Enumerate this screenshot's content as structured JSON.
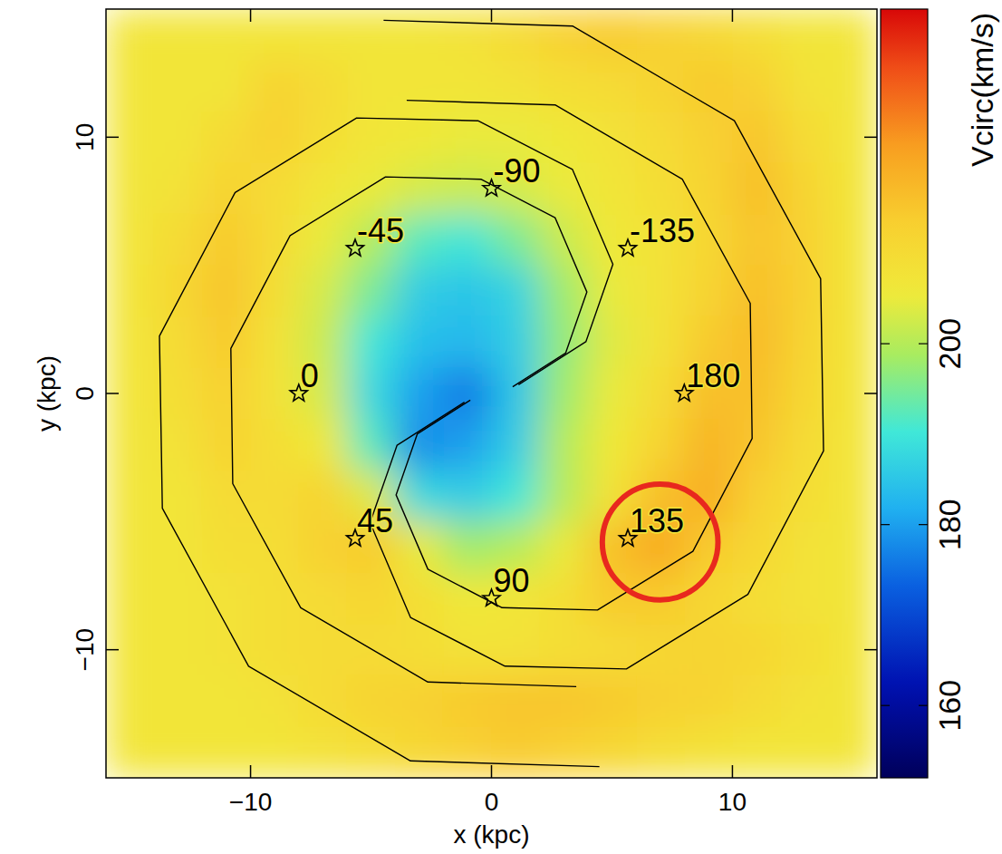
{
  "chart_data": {
    "type": "heatmap",
    "x_label": "x (kpc)",
    "y_label": "y (kpc)",
    "xlim": [
      -16,
      16
    ],
    "ylim": [
      -15,
      15
    ],
    "xticks": [
      {
        "value": -10,
        "label": "−10"
      },
      0,
      10
    ],
    "yticks": [
      {
        "value": -10,
        "label": "−10"
      },
      0,
      10
    ],
    "x": [
      -15,
      -13,
      -11,
      -9,
      -7,
      -5,
      -3,
      -1,
      1,
      3,
      5,
      7,
      9,
      11,
      13,
      15
    ],
    "y": [
      14,
      12,
      10,
      8,
      6,
      4,
      2,
      0,
      -2,
      -4,
      -6,
      -8,
      -10,
      -12,
      -14
    ],
    "cells": [
      [
        207,
        207,
        207,
        207,
        207,
        207,
        207,
        208,
        210,
        213,
        214,
        213,
        211,
        209,
        207,
        207
      ],
      [
        207,
        207,
        207,
        212,
        210,
        207,
        207,
        207,
        208,
        209,
        210,
        212,
        214,
        213,
        208,
        207
      ],
      [
        207,
        207,
        210,
        213,
        209,
        207,
        206,
        205,
        205,
        206,
        208,
        210,
        213,
        215,
        210,
        207
      ],
      [
        207,
        208,
        212,
        210,
        207,
        205,
        203,
        202,
        203,
        205,
        207,
        209,
        212,
        216,
        212,
        207
      ],
      [
        207,
        210,
        214,
        210,
        205,
        200,
        192,
        190,
        195,
        202,
        206,
        208,
        211,
        215,
        213,
        207
      ],
      [
        207,
        211,
        215,
        209,
        203,
        195,
        186,
        185,
        187,
        198,
        205,
        208,
        212,
        216,
        213,
        207
      ],
      [
        207,
        210,
        214,
        208,
        202,
        190,
        184,
        183,
        186,
        197,
        204,
        208,
        214,
        217,
        212,
        207
      ],
      [
        207,
        209,
        213,
        208,
        203,
        188,
        180,
        176,
        185,
        198,
        205,
        210,
        216,
        216,
        211,
        207
      ],
      [
        207,
        208,
        212,
        209,
        206,
        192,
        178,
        180,
        186,
        200,
        206,
        212,
        218,
        215,
        210,
        207
      ],
      [
        207,
        207,
        210,
        210,
        212,
        204,
        188,
        186,
        190,
        200,
        208,
        216,
        219,
        213,
        209,
        207
      ],
      [
        207,
        207,
        209,
        209,
        213,
        214,
        205,
        198,
        200,
        205,
        216,
        220,
        214,
        211,
        208,
        207
      ],
      [
        207,
        207,
        208,
        209,
        210,
        211,
        209,
        206,
        207,
        209,
        214,
        214,
        211,
        209,
        208,
        207
      ],
      [
        207,
        207,
        208,
        209,
        210,
        210,
        209,
        208,
        208,
        209,
        210,
        211,
        212,
        211,
        209,
        207
      ],
      [
        207,
        207,
        207,
        208,
        210,
        212,
        213,
        214,
        215,
        215,
        214,
        213,
        212,
        210,
        208,
        207
      ],
      [
        207,
        207,
        207,
        207,
        208,
        209,
        211,
        213,
        214,
        213,
        211,
        209,
        208,
        207,
        207,
        207
      ]
    ],
    "colorbar": {
      "label": "Vcirc(km/s)",
      "lim": [
        152,
        237
      ],
      "ticks": [
        160,
        180,
        200
      ]
    },
    "contours": [
      {
        "x": [
          -0.88,
          -3.08,
          -3.96,
          -2.64,
          0.44,
          4.4,
          8.36,
          10.82,
          10.74,
          7.92,
          2.64,
          -3.52
        ],
        "y": [
          -0.26,
          -1.58,
          -3.96,
          -6.86,
          -8.36,
          -8.45,
          -6.16,
          -1.76,
          3.52,
          8.36,
          11.26,
          11.44
        ]
      },
      {
        "x": [
          -1.12,
          -3.92,
          -5.04,
          -3.36,
          0.56,
          5.6,
          10.64,
          13.78,
          13.66,
          10.08,
          3.36,
          -4.48
        ],
        "y": [
          -0.34,
          -2.02,
          -5.04,
          -8.74,
          -10.64,
          -10.75,
          -7.84,
          -2.24,
          4.48,
          10.64,
          14.34,
          14.56
        ]
      },
      {
        "x": [
          0.88,
          3.08,
          3.96,
          2.64,
          -0.44,
          -4.4,
          -8.36,
          -10.82,
          -10.74,
          -7.92,
          -2.64,
          3.52
        ],
        "y": [
          0.26,
          1.58,
          3.96,
          6.86,
          8.36,
          8.45,
          6.16,
          1.76,
          -3.52,
          -8.36,
          -11.26,
          -11.44
        ]
      },
      {
        "x": [
          1.12,
          3.92,
          5.04,
          3.36,
          -0.56,
          -5.6,
          -10.64,
          -13.78,
          -13.66,
          -10.08,
          -3.36,
          4.48
        ],
        "y": [
          0.34,
          2.02,
          5.04,
          8.74,
          10.64,
          10.75,
          7.84,
          2.24,
          -4.48,
          -10.64,
          -14.34,
          -14.56
        ]
      }
    ],
    "points": {
      "x": [
        -8,
        -5.66,
        0,
        5.66,
        8,
        5.66,
        0,
        -5.66
      ],
      "y": [
        0,
        -5.66,
        -8,
        -5.66,
        0,
        5.66,
        8,
        5.66
      ],
      "labels": [
        "0",
        "45",
        "90",
        "135",
        "180",
        "-135",
        "-90",
        "-45"
      ],
      "marker": "star"
    },
    "highlight": {
      "x": 7,
      "y": -5.8,
      "r": 2.4,
      "color": "#e8281e"
    }
  }
}
